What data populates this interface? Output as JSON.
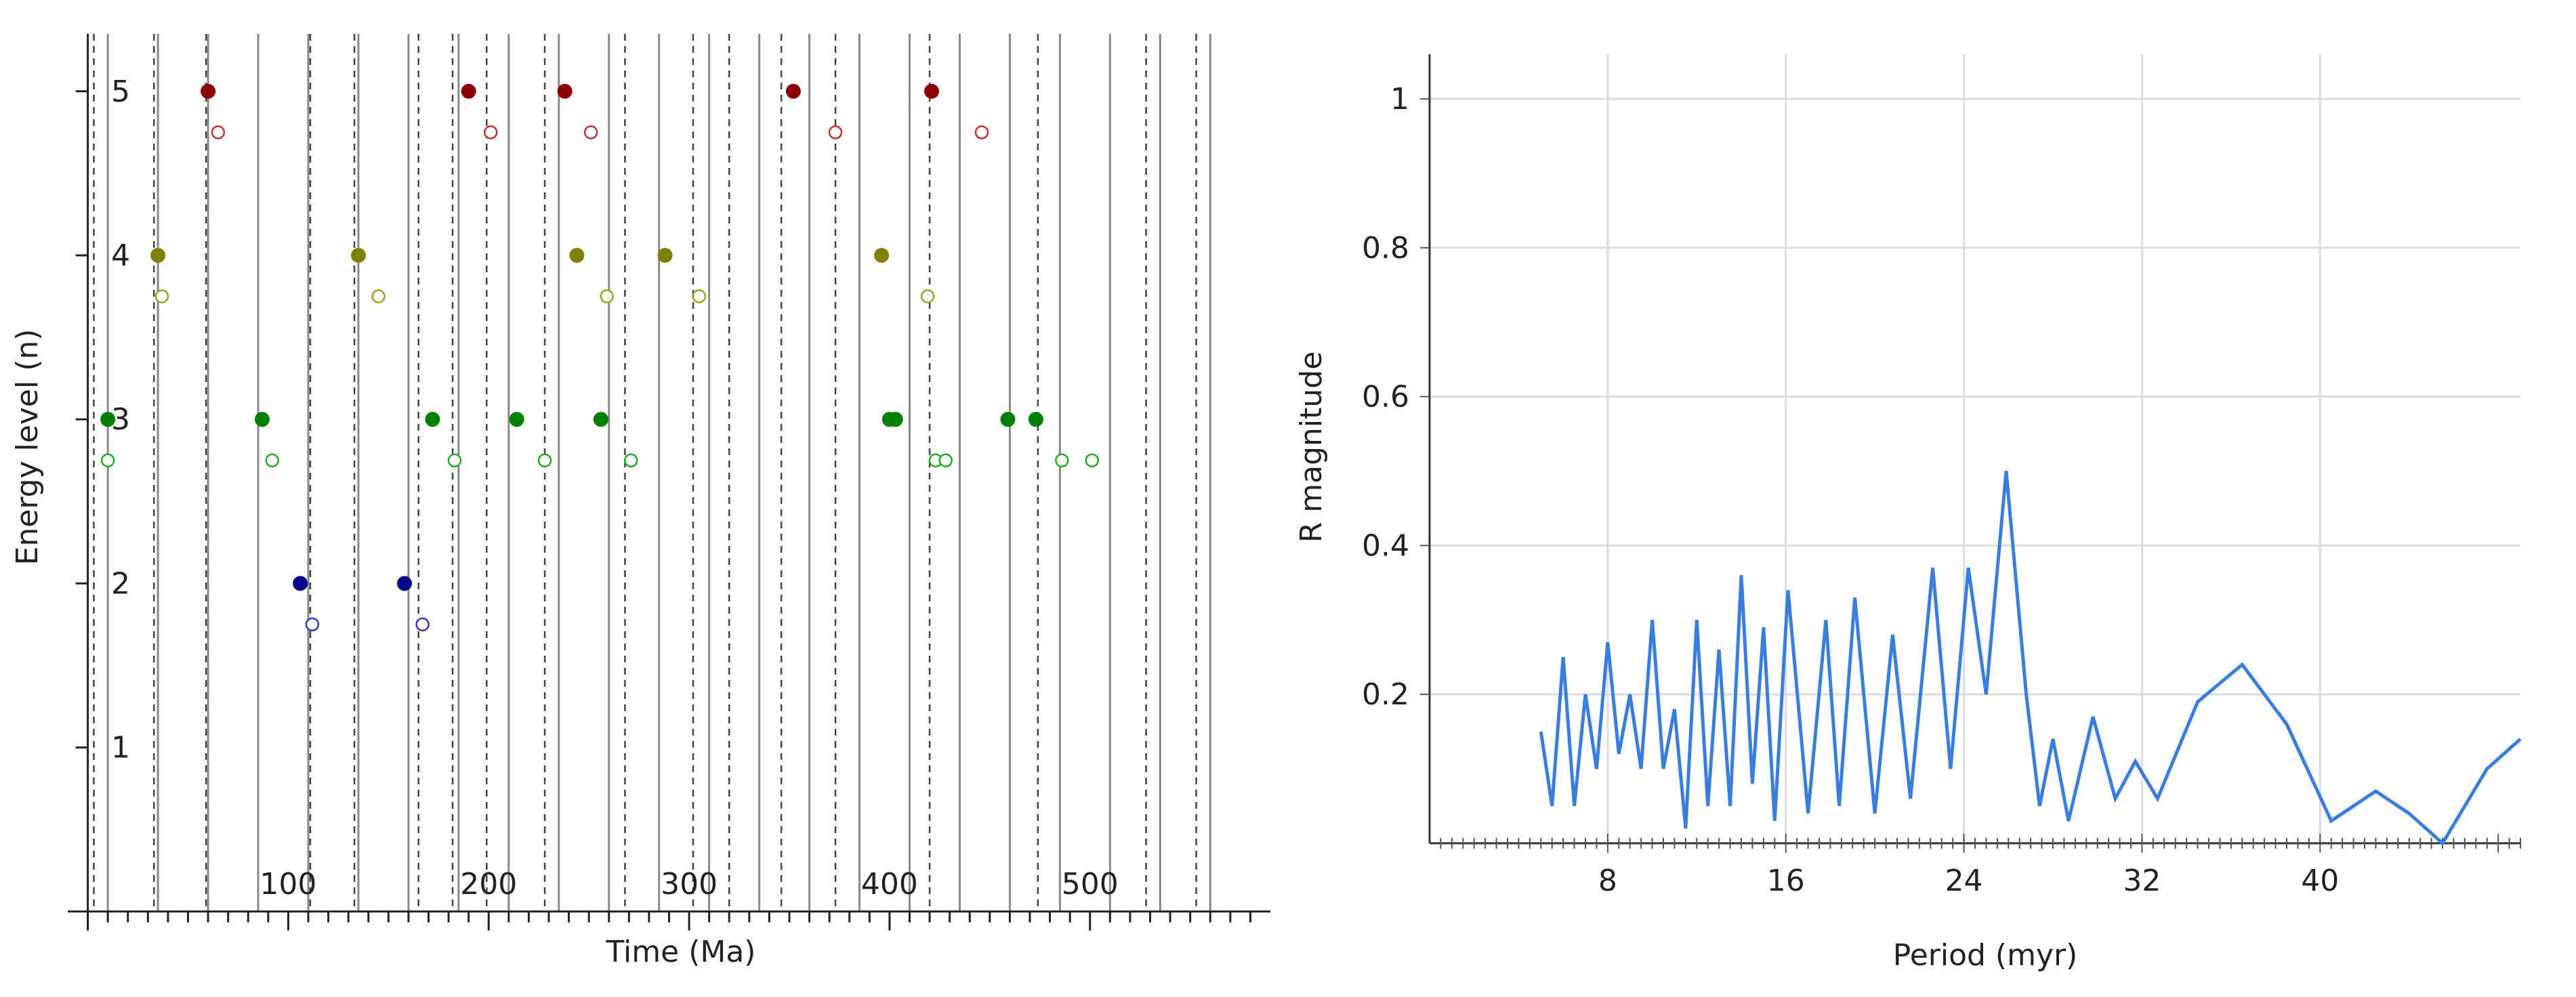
{
  "chart_data": [
    {
      "type": "scatter",
      "title": "",
      "xlabel": "Time (Ma)",
      "ylabel": "Energy level (n)",
      "xlim": [
        -10,
        590
      ],
      "ylim": [
        -0.1,
        5.35
      ],
      "x_ticks": [
        100,
        200,
        300,
        400,
        500
      ],
      "y_ticks": [
        1,
        2,
        3,
        4,
        5
      ],
      "grid": "vertical reference lines (solid and dashed)",
      "solid_lines": [
        10,
        35,
        60,
        85,
        110,
        135,
        160,
        185,
        210,
        235,
        260,
        285,
        310,
        335,
        360,
        385,
        410,
        435,
        460,
        485,
        510,
        535,
        560
      ],
      "dashed_lines": [
        3,
        33,
        59,
        111,
        133,
        165,
        182,
        199,
        228,
        268,
        302,
        320,
        346,
        373,
        420,
        474,
        528,
        553
      ],
      "series": [
        {
          "color": "#8b0000",
          "marker": "filled",
          "points": [
            [
              60,
              5
            ],
            [
              190,
              5
            ],
            [
              238,
              5
            ],
            [
              352,
              5
            ],
            [
              421,
              5
            ]
          ]
        },
        {
          "color": "#c03030",
          "marker": "open",
          "points": [
            [
              65,
              4.75
            ],
            [
              201,
              4.75
            ],
            [
              251,
              4.75
            ],
            [
              373,
              4.75
            ],
            [
              446,
              4.75
            ]
          ]
        },
        {
          "color": "#808000",
          "marker": "filled",
          "points": [
            [
              35,
              4
            ],
            [
              135,
              4
            ],
            [
              244,
              4
            ],
            [
              288,
              4
            ],
            [
              396,
              4
            ]
          ]
        },
        {
          "color": "#a0a020",
          "marker": "open",
          "points": [
            [
              37,
              3.75
            ],
            [
              145,
              3.75
            ],
            [
              259,
              3.75
            ],
            [
              305,
              3.75
            ],
            [
              419,
              3.75
            ]
          ]
        },
        {
          "color": "#008000",
          "marker": "filled",
          "points": [
            [
              10,
              3
            ],
            [
              87,
              3
            ],
            [
              172,
              3
            ],
            [
              214,
              3
            ],
            [
              256,
              3
            ],
            [
              400,
              3
            ],
            [
              403,
              3
            ],
            [
              459,
              3
            ],
            [
              473,
              3
            ]
          ]
        },
        {
          "color": "#22aa22",
          "marker": "open",
          "points": [
            [
              10,
              2.75
            ],
            [
              92,
              2.75
            ],
            [
              183,
              2.75
            ],
            [
              228,
              2.75
            ],
            [
              271,
              2.75
            ],
            [
              423,
              2.75
            ],
            [
              428,
              2.75
            ],
            [
              486,
              2.75
            ],
            [
              501,
              2.75
            ]
          ]
        },
        {
          "color": "#00008b",
          "marker": "filled",
          "points": [
            [
              106,
              2
            ],
            [
              158,
              2
            ]
          ]
        },
        {
          "color": "#3333bb",
          "marker": "open",
          "points": [
            [
              112,
              1.75
            ],
            [
              167,
              1.75
            ]
          ]
        }
      ]
    },
    {
      "type": "line",
      "title": "",
      "xlabel": "Period (myr)",
      "ylabel": "R magnitude",
      "xlim": [
        0,
        49
      ],
      "ylim": [
        0,
        1.06
      ],
      "x_ticks": [
        8,
        16,
        24,
        32,
        40
      ],
      "y_ticks": [
        0.2,
        0.4,
        0.6,
        0.8,
        1
      ],
      "grid": true,
      "series": [
        {
          "color": "#3a7de0",
          "points": [
            [
              5,
              0.15
            ],
            [
              5.5,
              0.05
            ],
            [
              6,
              0.25
            ],
            [
              6.5,
              0.05
            ],
            [
              7,
              0.2
            ],
            [
              7.5,
              0.1
            ],
            [
              8,
              0.27
            ],
            [
              8.5,
              0.12
            ],
            [
              9,
              0.2
            ],
            [
              9.5,
              0.1
            ],
            [
              10,
              0.3
            ],
            [
              10.5,
              0.1
            ],
            [
              11,
              0.18
            ],
            [
              11.5,
              0.02
            ],
            [
              12,
              0.3
            ],
            [
              12.5,
              0.05
            ],
            [
              13,
              0.26
            ],
            [
              13.5,
              0.05
            ],
            [
              14,
              0.36
            ],
            [
              14.5,
              0.08
            ],
            [
              15,
              0.29
            ],
            [
              15.5,
              0.03
            ],
            [
              16.1,
              0.34
            ],
            [
              17,
              0.04
            ],
            [
              17.8,
              0.3
            ],
            [
              18.4,
              0.05
            ],
            [
              19.1,
              0.33
            ],
            [
              20,
              0.04
            ],
            [
              20.8,
              0.28
            ],
            [
              21.6,
              0.06
            ],
            [
              22.6,
              0.37
            ],
            [
              23.4,
              0.1
            ],
            [
              24.2,
              0.37
            ],
            [
              25,
              0.2
            ],
            [
              25.9,
              0.5
            ],
            [
              26.8,
              0.2
            ],
            [
              27.4,
              0.05
            ],
            [
              28,
              0.14
            ],
            [
              28.7,
              0.03
            ],
            [
              29.8,
              0.17
            ],
            [
              30.8,
              0.06
            ],
            [
              31.7,
              0.11
            ],
            [
              32.7,
              0.06
            ],
            [
              34.5,
              0.19
            ],
            [
              36.5,
              0.24
            ],
            [
              38.5,
              0.16
            ],
            [
              40.5,
              0.03
            ],
            [
              42.5,
              0.07
            ],
            [
              44,
              0.04
            ],
            [
              45.5,
              0.0
            ],
            [
              47.5,
              0.1
            ],
            [
              49,
              0.14
            ]
          ]
        }
      ]
    }
  ]
}
